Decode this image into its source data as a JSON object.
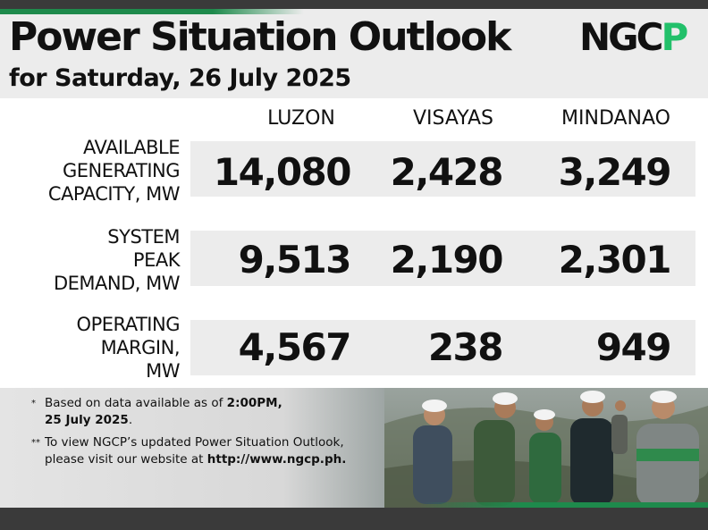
{
  "header": {
    "title": "Power Situation Outlook",
    "subtitle": "for Saturday, 26 July 2025",
    "logo_text": "NGCP"
  },
  "columns": [
    "LUZON",
    "VISAYAS",
    "MINDANAO"
  ],
  "rows": [
    {
      "label_lines": [
        "AVAILABLE",
        "GENERATING",
        "CAPACITY, MW"
      ],
      "values": [
        "14,080",
        "2,428",
        "3,249"
      ]
    },
    {
      "label_lines": [
        "SYSTEM",
        "PEAK",
        "DEMAND, MW"
      ],
      "values": [
        "9,513",
        "2,190",
        "2,301"
      ]
    },
    {
      "label_lines": [
        "OPERATING",
        "MARGIN,",
        "MW"
      ],
      "values": [
        "4,567",
        "238",
        "949"
      ]
    }
  ],
  "notes": {
    "note1_mark": "*",
    "note1_line1_pre": "Based on data available as of ",
    "note1_line1_bold": "2:00PM,",
    "note1_line2_bold": "25 July 2025",
    "note1_line2_post": ".",
    "note2_mark": "**",
    "note2_line1": "To view NGCP’s updated Power Situation Outlook,",
    "note2_line2_pre": "please visit our website at ",
    "note2_line2_bold": "http://www.ngcp.ph."
  },
  "colors": {
    "accent_green": "#1e8a4c",
    "logo_green": "#22c06a",
    "band_gray": "#ececec",
    "dark_bar": "#3a3a3a"
  }
}
